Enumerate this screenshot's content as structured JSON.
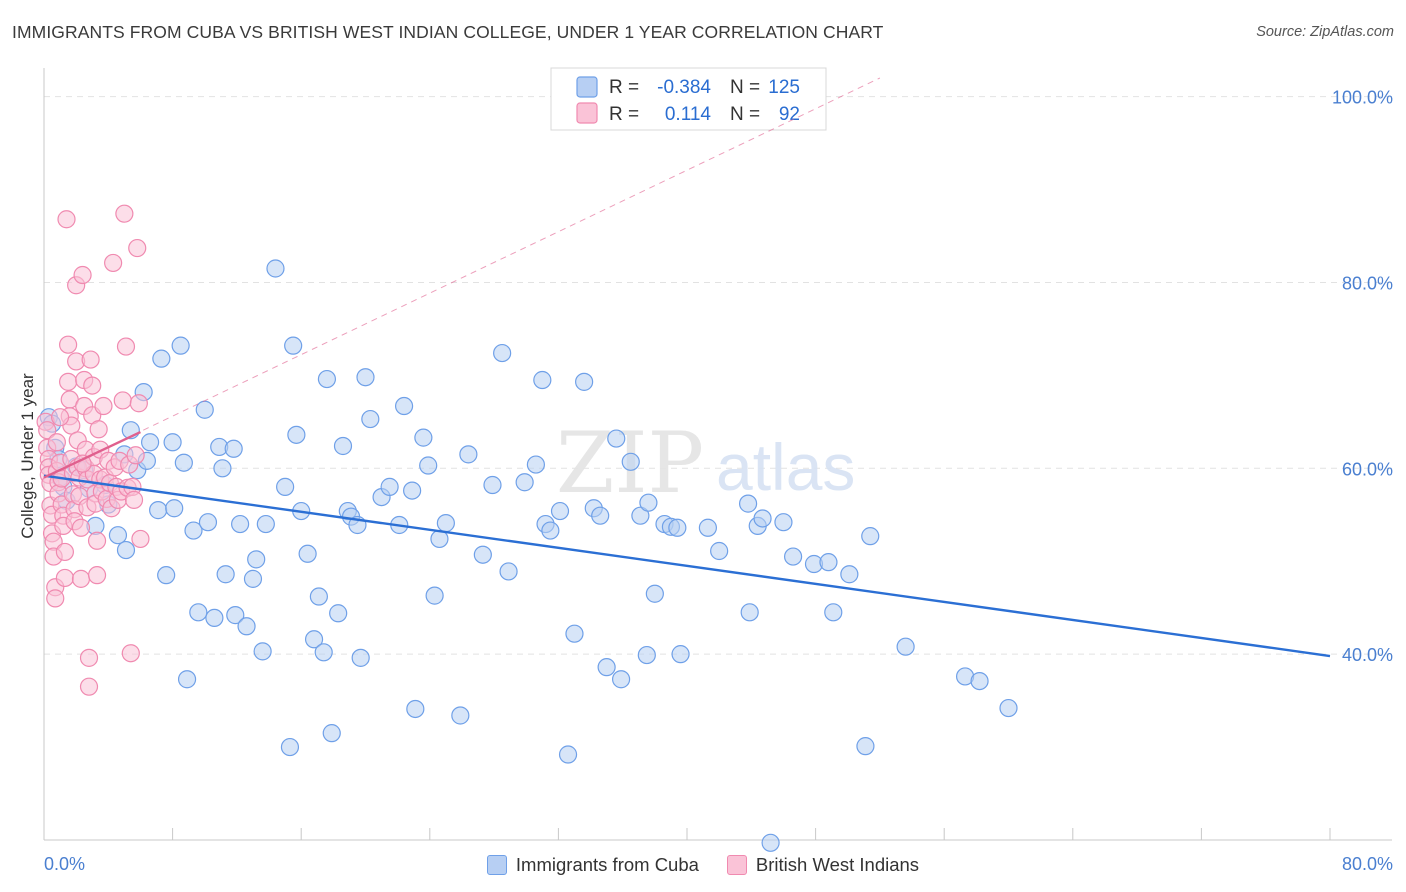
{
  "chart_data": {
    "type": "scatter",
    "title": "IMMIGRANTS FROM CUBA VS BRITISH WEST INDIAN COLLEGE, UNDER 1 YEAR CORRELATION CHART",
    "source": "Source: ZipAtlas.com",
    "xlabel": "",
    "ylabel": "College, Under 1 year",
    "xlim": [
      0,
      80
    ],
    "ylim": [
      20,
      102
    ],
    "x_tick_labels": [
      "0.0%",
      "80.0%"
    ],
    "y_ticks": [
      40,
      60,
      80,
      100
    ],
    "y_tick_labels": [
      "40.0%",
      "60.0%",
      "80.0%",
      "100.0%"
    ],
    "watermark": {
      "zip": "ZIP",
      "atlas": "atlas"
    },
    "legend_stats": [
      {
        "r_label": "R =",
        "r_value": "-0.384",
        "n_label": "N =",
        "n_value": "125"
      },
      {
        "r_label": "R =",
        "r_value": "0.114",
        "n_label": "N =",
        "n_value": "92"
      }
    ],
    "series": [
      {
        "name": "Immigrants from Cuba",
        "color": "#6fa0e8",
        "fill": "#b7cff3",
        "line_color": "#2b6fd4",
        "trend": {
          "x": [
            0,
            80
          ],
          "y": [
            59.2,
            39.8
          ]
        },
        "points": [
          [
            0.3,
            65.5
          ],
          [
            0.5,
            64.8
          ],
          [
            0.7,
            62.2
          ],
          [
            0.9,
            61.0
          ],
          [
            1.0,
            59.0
          ],
          [
            1.2,
            58.0
          ],
          [
            1.4,
            56.5
          ],
          [
            2.0,
            60.2
          ],
          [
            2.5,
            59.8
          ],
          [
            2.8,
            57.8
          ],
          [
            3.2,
            53.8
          ],
          [
            3.8,
            58.2
          ],
          [
            4.0,
            56.1
          ],
          [
            4.6,
            52.8
          ],
          [
            5.0,
            61.5
          ],
          [
            5.1,
            51.2
          ],
          [
            5.4,
            64.1
          ],
          [
            5.8,
            59.8
          ],
          [
            6.2,
            68.2
          ],
          [
            6.4,
            60.8
          ],
          [
            6.6,
            62.8
          ],
          [
            7.1,
            55.5
          ],
          [
            7.3,
            71.8
          ],
          [
            7.6,
            48.5
          ],
          [
            8.0,
            62.8
          ],
          [
            8.1,
            55.7
          ],
          [
            8.5,
            73.2
          ],
          [
            8.7,
            60.6
          ],
          [
            8.9,
            37.3
          ],
          [
            9.3,
            53.3
          ],
          [
            9.6,
            44.5
          ],
          [
            10.0,
            66.3
          ],
          [
            10.2,
            54.2
          ],
          [
            10.6,
            43.9
          ],
          [
            10.9,
            62.3
          ],
          [
            11.1,
            60.0
          ],
          [
            11.3,
            48.6
          ],
          [
            11.8,
            62.1
          ],
          [
            11.9,
            44.2
          ],
          [
            12.2,
            54.0
          ],
          [
            12.6,
            43.0
          ],
          [
            13.0,
            48.1
          ],
          [
            13.2,
            50.2
          ],
          [
            13.6,
            40.3
          ],
          [
            13.8,
            54.0
          ],
          [
            14.4,
            81.5
          ],
          [
            15.0,
            58.0
          ],
          [
            15.3,
            30.0
          ],
          [
            15.5,
            73.2
          ],
          [
            15.7,
            63.6
          ],
          [
            16.0,
            55.4
          ],
          [
            16.4,
            50.8
          ],
          [
            16.8,
            41.6
          ],
          [
            17.1,
            46.2
          ],
          [
            17.4,
            40.2
          ],
          [
            17.6,
            69.6
          ],
          [
            17.9,
            31.5
          ],
          [
            18.3,
            44.4
          ],
          [
            18.6,
            62.4
          ],
          [
            18.9,
            55.4
          ],
          [
            19.1,
            54.8
          ],
          [
            19.5,
            53.9
          ],
          [
            19.7,
            39.6
          ],
          [
            20.0,
            69.8
          ],
          [
            20.3,
            65.3
          ],
          [
            21.0,
            56.9
          ],
          [
            21.5,
            58.0
          ],
          [
            22.1,
            53.9
          ],
          [
            22.4,
            66.7
          ],
          [
            22.9,
            57.6
          ],
          [
            23.1,
            34.1
          ],
          [
            23.6,
            63.3
          ],
          [
            23.9,
            60.3
          ],
          [
            24.3,
            46.3
          ],
          [
            24.6,
            52.4
          ],
          [
            25.0,
            54.1
          ],
          [
            25.9,
            33.4
          ],
          [
            26.4,
            61.5
          ],
          [
            27.3,
            50.7
          ],
          [
            27.9,
            58.2
          ],
          [
            28.5,
            72.4
          ],
          [
            28.9,
            48.9
          ],
          [
            29.9,
            58.5
          ],
          [
            30.6,
            60.4
          ],
          [
            31.0,
            69.5
          ],
          [
            31.2,
            54.0
          ],
          [
            31.5,
            53.3
          ],
          [
            32.1,
            55.4
          ],
          [
            32.6,
            29.2
          ],
          [
            33.0,
            42.2
          ],
          [
            33.6,
            69.3
          ],
          [
            34.2,
            55.7
          ],
          [
            34.6,
            54.9
          ],
          [
            35.0,
            38.6
          ],
          [
            35.6,
            63.2
          ],
          [
            35.9,
            37.3
          ],
          [
            36.5,
            60.7
          ],
          [
            37.1,
            54.9
          ],
          [
            37.5,
            39.9
          ],
          [
            37.6,
            56.3
          ],
          [
            38.0,
            46.5
          ],
          [
            38.6,
            54.0
          ],
          [
            39.0,
            53.7
          ],
          [
            39.6,
            40.0
          ],
          [
            39.4,
            53.6
          ],
          [
            41.3,
            53.6
          ],
          [
            42.0,
            51.1
          ],
          [
            43.8,
            56.2
          ],
          [
            43.9,
            44.5
          ],
          [
            44.4,
            53.8
          ],
          [
            44.7,
            54.6
          ],
          [
            45.2,
            19.7
          ],
          [
            46.0,
            54.2
          ],
          [
            46.6,
            50.5
          ],
          [
            47.9,
            49.7
          ],
          [
            48.8,
            49.9
          ],
          [
            49.1,
            44.5
          ],
          [
            50.1,
            48.6
          ],
          [
            51.1,
            30.1
          ],
          [
            51.4,
            52.7
          ],
          [
            53.6,
            40.8
          ],
          [
            57.3,
            37.6
          ],
          [
            58.2,
            37.1
          ],
          [
            60.0,
            34.2
          ]
        ]
      },
      {
        "name": "British West Indians",
        "color": "#f08ab0",
        "fill": "#fac3d7",
        "line_color": "#e0608e",
        "trend": {
          "x": [
            0,
            6
          ],
          "y": [
            59.0,
            63.9
          ]
        },
        "extended": {
          "x": [
            0,
            52
          ],
          "y": [
            59.0,
            102.0
          ]
        },
        "points": [
          [
            0.1,
            65.0
          ],
          [
            0.2,
            64.1
          ],
          [
            0.2,
            62.2
          ],
          [
            0.3,
            61.0
          ],
          [
            0.3,
            60.1
          ],
          [
            0.3,
            59.3
          ],
          [
            0.4,
            58.4
          ],
          [
            0.4,
            56.0
          ],
          [
            0.5,
            55.0
          ],
          [
            0.5,
            53.0
          ],
          [
            0.6,
            52.1
          ],
          [
            0.6,
            50.5
          ],
          [
            0.7,
            47.2
          ],
          [
            0.7,
            46.0
          ],
          [
            0.8,
            62.8
          ],
          [
            0.8,
            59.7
          ],
          [
            0.9,
            58.5
          ],
          [
            0.9,
            57.3
          ],
          [
            1.0,
            60.6
          ],
          [
            1.1,
            58.9
          ],
          [
            1.1,
            56.1
          ],
          [
            1.2,
            54.9
          ],
          [
            1.2,
            53.8
          ],
          [
            1.3,
            51.0
          ],
          [
            1.3,
            48.2
          ],
          [
            1.4,
            86.8
          ],
          [
            1.5,
            73.3
          ],
          [
            1.5,
            69.3
          ],
          [
            1.6,
            67.4
          ],
          [
            1.6,
            65.6
          ],
          [
            1.7,
            64.6
          ],
          [
            1.7,
            61.0
          ],
          [
            1.8,
            59.5
          ],
          [
            1.8,
            57.2
          ],
          [
            1.9,
            55.6
          ],
          [
            1.9,
            54.3
          ],
          [
            2.0,
            79.7
          ],
          [
            2.0,
            71.5
          ],
          [
            2.1,
            63.0
          ],
          [
            2.1,
            60.1
          ],
          [
            2.2,
            59.0
          ],
          [
            2.2,
            57.0
          ],
          [
            2.3,
            53.6
          ],
          [
            2.3,
            48.1
          ],
          [
            2.4,
            80.8
          ],
          [
            2.5,
            69.5
          ],
          [
            2.5,
            66.7
          ],
          [
            2.6,
            62.0
          ],
          [
            2.6,
            60.0
          ],
          [
            2.7,
            58.8
          ],
          [
            2.7,
            55.8
          ],
          [
            2.8,
            39.6
          ],
          [
            2.8,
            36.5
          ],
          [
            2.9,
            71.7
          ],
          [
            3.0,
            68.9
          ],
          [
            3.0,
            65.7
          ],
          [
            3.1,
            61.2
          ],
          [
            3.1,
            59.4
          ],
          [
            3.2,
            57.3
          ],
          [
            3.2,
            56.2
          ],
          [
            3.3,
            52.2
          ],
          [
            3.3,
            48.5
          ],
          [
            3.4,
            64.2
          ],
          [
            3.5,
            62.0
          ],
          [
            3.5,
            58.8
          ],
          [
            3.6,
            57.5
          ],
          [
            3.7,
            66.7
          ],
          [
            3.8,
            59.0
          ],
          [
            3.9,
            56.7
          ],
          [
            4.0,
            60.8
          ],
          [
            4.1,
            58.4
          ],
          [
            4.2,
            55.7
          ],
          [
            4.3,
            82.1
          ],
          [
            4.4,
            60.1
          ],
          [
            4.5,
            58.0
          ],
          [
            4.6,
            56.6
          ],
          [
            4.7,
            60.8
          ],
          [
            4.8,
            57.5
          ],
          [
            4.9,
            67.3
          ],
          [
            5.0,
            87.4
          ],
          [
            5.1,
            73.1
          ],
          [
            5.2,
            57.9
          ],
          [
            5.3,
            60.4
          ],
          [
            5.4,
            40.1
          ],
          [
            5.5,
            58.0
          ],
          [
            5.6,
            56.6
          ],
          [
            5.7,
            61.4
          ],
          [
            5.8,
            83.7
          ],
          [
            5.9,
            67.0
          ],
          [
            6.0,
            52.4
          ],
          [
            1.0,
            65.5
          ],
          [
            2.4,
            60.5
          ]
        ]
      }
    ]
  }
}
